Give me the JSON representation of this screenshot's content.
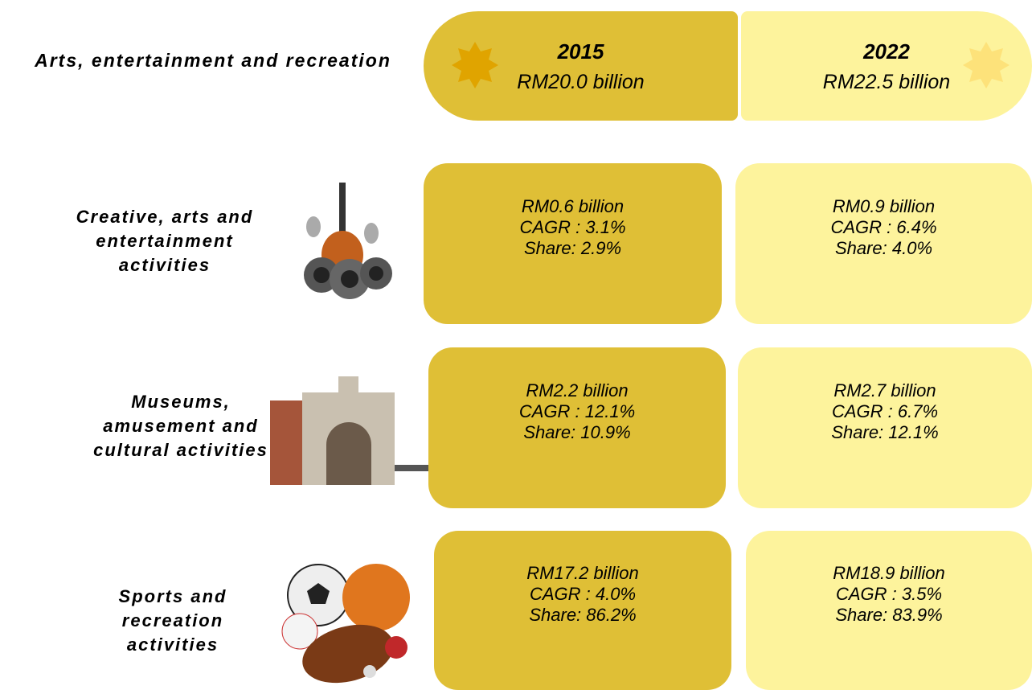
{
  "header": {
    "label": "Arts, entertainment and recreation",
    "columns": [
      {
        "year": "2015",
        "total": "RM20.0 billion"
      },
      {
        "year": "2022",
        "total": "RM22.5 billion"
      }
    ]
  },
  "rows": [
    {
      "label_lines": [
        "Creative, arts and",
        "entertainment",
        "activities"
      ],
      "cells": [
        {
          "value": "RM0.6 billion",
          "cagr": "CAGR : 3.1%",
          "share": "Share: 2.9%"
        },
        {
          "value": "RM0.9 billion",
          "cagr": "CAGR : 6.4%",
          "share": "Share: 4.0%"
        }
      ]
    },
    {
      "label_lines": [
        "Museums,",
        "amusement and",
        "cultural activities"
      ],
      "cells": [
        {
          "value": "RM2.2 billion",
          "cagr": "CAGR : 12.1%",
          "share": "Share: 10.9%"
        },
        {
          "value": "RM2.7 billion",
          "cagr": "CAGR : 6.7%",
          "share": "Share: 12.1%"
        }
      ]
    },
    {
      "label_lines": [
        "Sports and",
        "recreation",
        "activities"
      ],
      "cells": [
        {
          "value": "RM17.2 billion",
          "cagr": "CAGR : 4.0%",
          "share": "Share: 86.2%"
        },
        {
          "value": "RM18.9 billion",
          "cagr": "CAGR : 3.5%",
          "share": "Share: 83.9%"
        }
      ]
    }
  ]
}
